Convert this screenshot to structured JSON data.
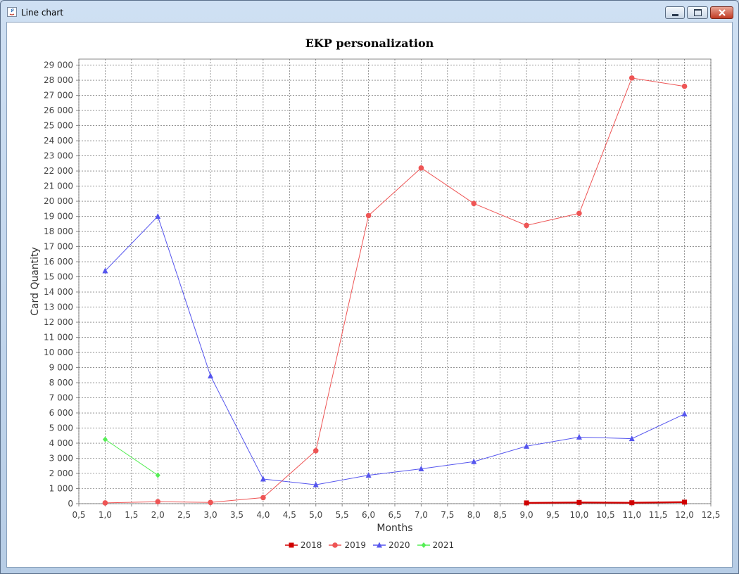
{
  "window": {
    "title": "Line chart",
    "icon": "java-icon"
  },
  "chart_data": {
    "type": "line",
    "title": "EKP personalization",
    "xlabel": "Months",
    "ylabel": "Card Quantity",
    "xlim": [
      0.5,
      12.5
    ],
    "ylim": [
      0,
      29400
    ],
    "x_ticks": [
      "0,5",
      "1,0",
      "1,5",
      "2,0",
      "2,5",
      "3,0",
      "3,5",
      "4,0",
      "4,5",
      "5,0",
      "5,5",
      "6,0",
      "6,5",
      "7,0",
      "7,5",
      "8,0",
      "8,5",
      "9,0",
      "9,5",
      "10,0",
      "10,5",
      "11,0",
      "11,5",
      "12,0",
      "12,5"
    ],
    "y_ticks": [
      "0",
      "1 000",
      "2 000",
      "3 000",
      "4 000",
      "5 000",
      "6 000",
      "7 000",
      "8 000",
      "9 000",
      "10 000",
      "11 000",
      "12 000",
      "13 000",
      "14 000",
      "15 000",
      "16 000",
      "17 000",
      "18 000",
      "19 000",
      "20 000",
      "21 000",
      "22 000",
      "23 000",
      "24 000",
      "25 000",
      "26 000",
      "27 000",
      "28 000",
      "29 000"
    ],
    "grid": true,
    "legend_position": "bottom",
    "series": [
      {
        "name": "2018",
        "color": "#d00000",
        "marker": "square",
        "x": [
          9,
          10,
          11,
          12
        ],
        "y": [
          50,
          80,
          60,
          100
        ]
      },
      {
        "name": "2019",
        "color": "#ee5555",
        "marker": "circle",
        "x": [
          1,
          2,
          3,
          4,
          5,
          6,
          7,
          8,
          9,
          10,
          11,
          12
        ],
        "y": [
          50,
          130,
          80,
          400,
          3500,
          19050,
          22200,
          19850,
          18400,
          19200,
          28150,
          27600
        ]
      },
      {
        "name": "2020",
        "color": "#5555ee",
        "marker": "triangle",
        "x": [
          1,
          2,
          3,
          4,
          5,
          6,
          7,
          8,
          9,
          10,
          11,
          12
        ],
        "y": [
          15400,
          19000,
          8450,
          1630,
          1250,
          1880,
          2300,
          2780,
          3800,
          4400,
          4300,
          5930
        ]
      },
      {
        "name": "2021",
        "color": "#55ee55",
        "marker": "diamond",
        "x": [
          1,
          2
        ],
        "y": [
          4250,
          1880
        ]
      }
    ]
  }
}
